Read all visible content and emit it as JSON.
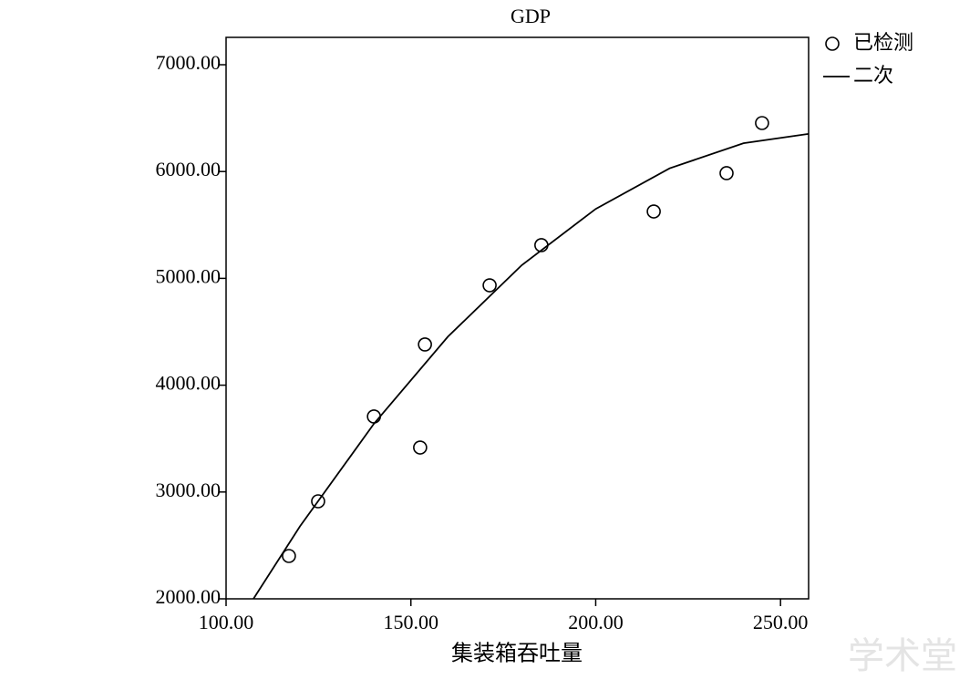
{
  "chart_data": {
    "type": "scatter",
    "title": "GDP",
    "x_label": "集装箱吞吐量",
    "xlim": [
      100,
      257.6
    ],
    "ylim": [
      2000,
      7256
    ],
    "xticks": [
      {
        "value": 100,
        "label": "100.00"
      },
      {
        "value": 150,
        "label": "150.00"
      },
      {
        "value": 200,
        "label": "200.00"
      },
      {
        "value": 250,
        "label": "250.00"
      }
    ],
    "yticks": [
      {
        "value": 2000,
        "label": "2000.00"
      },
      {
        "value": 3000,
        "label": "3000.00"
      },
      {
        "value": 4000,
        "label": "4000.00"
      },
      {
        "value": 5000,
        "label": "5000.00"
      },
      {
        "value": 6000,
        "label": "6000.00"
      },
      {
        "value": 7000,
        "label": "7000.00"
      }
    ],
    "series": [
      {
        "name": "已检测",
        "type": "scatter",
        "color": "#000000",
        "x": [
          117.0,
          124.9,
          140.0,
          152.5,
          153.8,
          171.3,
          185.3,
          215.7,
          235.4,
          245.0
        ],
        "values": [
          2401,
          2913,
          3707,
          3416,
          4381,
          4935,
          5311,
          5626,
          5985,
          6454
        ]
      },
      {
        "name": "二次",
        "type": "line",
        "color": "#000000",
        "x": [
          107.4,
          120,
          140,
          160,
          180,
          200,
          220,
          240,
          257.6
        ],
        "values": [
          2000,
          2679,
          3639,
          4454,
          5124,
          5650,
          6030,
          6265,
          6352
        ]
      }
    ],
    "watermark": "学术堂"
  }
}
